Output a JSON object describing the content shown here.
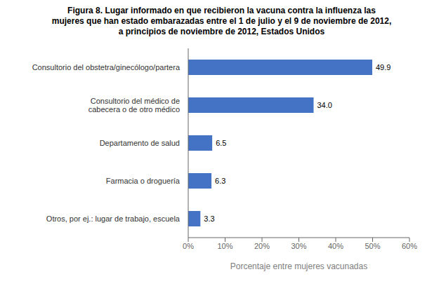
{
  "chart_data": {
    "type": "bar",
    "orientation": "horizontal",
    "title": "Figura 8. Lugar informado en que recibieron la vacuna contra la influenza las\nmujeres que han estado embarazadas entre el 1 de julio y el 9 de noviembre de 2012,\na principios de noviembre de 2012, Estados Unidos",
    "categories": [
      "Otros, por ej.: lugar de trabajo, escuela",
      "Farmacia o droguería",
      "Departamento de salud",
      "Consultorio del médico de\ncabecera o de otro médico",
      "Consultorio del obstetra/ginecólogo/partera"
    ],
    "values": [
      3.3,
      6.3,
      6.5,
      34.0,
      49.9
    ],
    "value_labels": [
      "3.3",
      "6.3",
      "6.5",
      "34.0",
      "49.9"
    ],
    "data_labels": true,
    "color": "#4472C4",
    "xlabel": "Porcentaje entre mujeres vacunadas",
    "xlim": [
      0,
      60
    ],
    "xticks": [
      {
        "value": 0,
        "label": "0%"
      },
      {
        "value": 10,
        "label": "10%"
      },
      {
        "value": 20,
        "label": "20%"
      },
      {
        "value": 30,
        "label": "30%"
      },
      {
        "value": 40,
        "label": "40%"
      },
      {
        "value": 50,
        "label": "50%"
      },
      {
        "value": 60,
        "label": "60%"
      }
    ],
    "grid": false
  }
}
